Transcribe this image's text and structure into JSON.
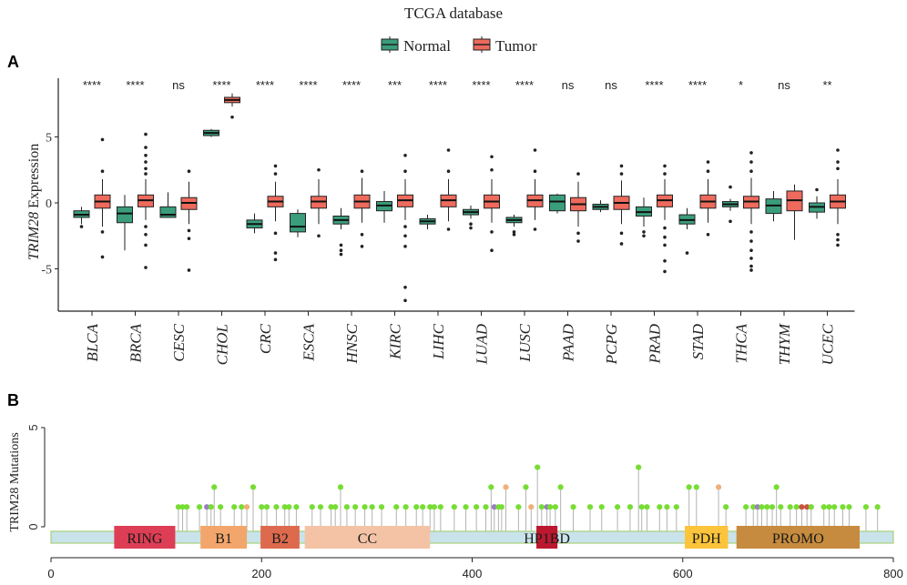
{
  "chart_data": [
    {
      "panel": "A",
      "type": "boxplot",
      "title": "TCGA database",
      "ylabel_gene": "TRIM28",
      "ylabel_suffix": " Expression",
      "ylim": [
        -8,
        9
      ],
      "yticks": [
        {
          "value": 5,
          "label": "5"
        },
        {
          "value": 0,
          "label": "0"
        },
        {
          "value": -5,
          "label": "-5"
        }
      ],
      "legend": [
        {
          "name": "Normal",
          "color": "#3a9d7c"
        },
        {
          "name": "Tumor",
          "color": "#ee6a5c"
        }
      ],
      "categories": [
        "BLCA",
        "BRCA",
        "CESC",
        "CHOL",
        "CRC",
        "ESCA",
        "HNSC",
        "KIRC",
        "LIHC",
        "LUAD",
        "LUSC",
        "PAAD",
        "PCPG",
        "PRAD",
        "STAD",
        "THCA",
        "THYM",
        "UCEC"
      ],
      "significance": [
        "****",
        "****",
        "ns",
        "****",
        "****",
        "****",
        "****",
        "***",
        "****",
        "****",
        "****",
        "ns",
        "ns",
        "****",
        "****",
        "*",
        "ns",
        "**"
      ],
      "series": [
        {
          "name": "Normal",
          "boxes": [
            {
              "q1": -1.1,
              "median": -0.9,
              "q3": -0.6,
              "lo": -1.6,
              "hi": -0.3,
              "out": [
                -1.8
              ]
            },
            {
              "q1": -1.5,
              "median": -0.8,
              "q3": -0.3,
              "lo": -3.6,
              "hi": 0.6,
              "out": []
            },
            {
              "q1": -1.1,
              "median": -0.9,
              "q3": -0.3,
              "lo": -1.1,
              "hi": 0.8,
              "out": []
            },
            {
              "q1": 5.1,
              "median": 5.3,
              "q3": 5.5,
              "lo": 5.0,
              "hi": 5.6,
              "out": []
            },
            {
              "q1": -1.9,
              "median": -1.6,
              "q3": -1.3,
              "lo": -2.3,
              "hi": -0.8,
              "out": []
            },
            {
              "q1": -2.2,
              "median": -1.8,
              "q3": -0.8,
              "lo": -2.6,
              "hi": -0.5,
              "out": []
            },
            {
              "q1": -1.6,
              "median": -1.3,
              "q3": -1.0,
              "lo": -2.0,
              "hi": -0.4,
              "out": [
                -3.2,
                -3.6,
                -3.9
              ]
            },
            {
              "q1": -0.6,
              "median": -0.2,
              "q3": 0.1,
              "lo": -1.5,
              "hi": 0.9,
              "out": []
            },
            {
              "q1": -1.6,
              "median": -1.4,
              "q3": -1.2,
              "lo": -2.0,
              "hi": -0.9,
              "out": []
            },
            {
              "q1": -0.9,
              "median": -0.7,
              "q3": -0.5,
              "lo": -1.2,
              "hi": -0.2,
              "out": [
                -1.6,
                -1.9
              ]
            },
            {
              "q1": -1.5,
              "median": -1.3,
              "q3": -1.1,
              "lo": -1.8,
              "hi": -0.9,
              "out": [
                -2.2,
                -2.4
              ]
            },
            {
              "q1": -0.6,
              "median": 0.1,
              "q3": 0.6,
              "lo": -0.8,
              "hi": 0.7,
              "out": []
            },
            {
              "q1": -0.5,
              "median": -0.3,
              "q3": -0.1,
              "lo": -0.7,
              "hi": 0.2,
              "out": []
            },
            {
              "q1": -1.0,
              "median": -0.7,
              "q3": -0.3,
              "lo": -1.8,
              "hi": 0.4,
              "out": [
                -2.2,
                -2.5
              ]
            },
            {
              "q1": -1.6,
              "median": -1.3,
              "q3": -0.9,
              "lo": -2.0,
              "hi": -0.4,
              "out": [
                -3.8
              ]
            },
            {
              "q1": -0.3,
              "median": -0.1,
              "q3": 0.1,
              "lo": -0.6,
              "hi": 0.3,
              "out": [
                1.2,
                -1.4
              ]
            },
            {
              "q1": -0.8,
              "median": -0.2,
              "q3": 0.3,
              "lo": -1.4,
              "hi": 0.9,
              "out": []
            },
            {
              "q1": -0.7,
              "median": -0.3,
              "q3": 0.0,
              "lo": -1.2,
              "hi": 0.5,
              "out": [
                1.0
              ]
            }
          ]
        },
        {
          "name": "Tumor",
          "boxes": [
            {
              "q1": -0.4,
              "median": 0.1,
              "q3": 0.6,
              "lo": -1.8,
              "hi": 1.8,
              "out": [
                2.4,
                -2.2,
                -4.1,
                4.8
              ]
            },
            {
              "q1": -0.3,
              "median": 0.2,
              "q3": 0.6,
              "lo": -1.3,
              "hi": 1.8,
              "out": [
                2.2,
                2.6,
                3.1,
                3.6,
                4.2,
                5.2,
                -1.8,
                -2.4,
                -3.2,
                -4.9
              ]
            },
            {
              "q1": -0.5,
              "median": 0.0,
              "q3": 0.4,
              "lo": -1.6,
              "hi": 1.6,
              "out": [
                2.4,
                -2.1,
                -2.7,
                -5.1
              ]
            },
            {
              "q1": 7.6,
              "median": 7.8,
              "q3": 8.0,
              "lo": 7.3,
              "hi": 8.3,
              "out": [
                6.5
              ]
            },
            {
              "q1": -0.3,
              "median": 0.1,
              "q3": 0.5,
              "lo": -1.4,
              "hi": 1.6,
              "out": [
                2.2,
                2.8,
                -2.3,
                -3.8,
                -4.3
              ]
            },
            {
              "q1": -0.4,
              "median": 0.1,
              "q3": 0.5,
              "lo": -1.6,
              "hi": 1.8,
              "out": [
                2.5,
                -2.5
              ]
            },
            {
              "q1": -0.4,
              "median": 0.1,
              "q3": 0.6,
              "lo": -1.5,
              "hi": 1.9,
              "out": [
                2.4,
                -2.4,
                -3.3
              ]
            },
            {
              "q1": -0.3,
              "median": 0.2,
              "q3": 0.6,
              "lo": -1.3,
              "hi": 1.8,
              "out": [
                2.4,
                3.6,
                -1.8,
                -2.5,
                -3.3,
                -6.4,
                -7.4
              ]
            },
            {
              "q1": -0.3,
              "median": 0.2,
              "q3": 0.6,
              "lo": -1.4,
              "hi": 1.8,
              "out": [
                2.4,
                4.0,
                -2.0
              ]
            },
            {
              "q1": -0.4,
              "median": 0.1,
              "q3": 0.6,
              "lo": -1.5,
              "hi": 1.8,
              "out": [
                2.5,
                3.5,
                -2.2,
                -3.6
              ]
            },
            {
              "q1": -0.3,
              "median": 0.2,
              "q3": 0.6,
              "lo": -1.3,
              "hi": 1.8,
              "out": [
                2.4,
                4.0,
                -2.0
              ]
            },
            {
              "q1": -0.6,
              "median": -0.1,
              "q3": 0.4,
              "lo": -1.8,
              "hi": 1.6,
              "out": [
                2.2,
                -2.3,
                -2.9
              ]
            },
            {
              "q1": -0.5,
              "median": 0.0,
              "q3": 0.5,
              "lo": -1.6,
              "hi": 1.7,
              "out": [
                2.2,
                2.8,
                -2.3,
                -3.1
              ]
            },
            {
              "q1": -0.3,
              "median": 0.2,
              "q3": 0.6,
              "lo": -1.3,
              "hi": 1.8,
              "out": [
                2.2,
                2.8,
                -1.9,
                -2.6,
                -3.2,
                -4.4,
                -5.2
              ]
            },
            {
              "q1": -0.4,
              "median": 0.1,
              "q3": 0.6,
              "lo": -1.5,
              "hi": 1.8,
              "out": [
                2.4,
                3.1,
                -2.4
              ]
            },
            {
              "q1": -0.4,
              "median": 0.1,
              "q3": 0.5,
              "lo": -1.6,
              "hi": 1.9,
              "out": [
                2.4,
                3.1,
                3.8,
                -2.2,
                -2.9,
                -3.6,
                -4.2,
                -4.8,
                -5.1
              ]
            },
            {
              "q1": -0.6,
              "median": 0.2,
              "q3": 0.9,
              "lo": -2.8,
              "hi": 1.4,
              "out": []
            },
            {
              "q1": -0.4,
              "median": 0.1,
              "q3": 0.6,
              "lo": -1.6,
              "hi": 1.8,
              "out": [
                2.6,
                3.1,
                4.0,
                -2.4,
                -2.8,
                -3.2
              ]
            }
          ]
        }
      ]
    },
    {
      "panel": "B",
      "type": "lollipop",
      "ylabel": "TRIM28 Mutations",
      "ylim": [
        0,
        5
      ],
      "yticks": [
        0,
        5
      ],
      "xlim": [
        0,
        800
      ],
      "xticks": [
        0,
        200,
        400,
        600,
        800
      ],
      "domains": [
        {
          "name": "RING",
          "start": 60,
          "end": 118,
          "color": "#dd3e55"
        },
        {
          "name": "B1",
          "start": 142,
          "end": 186,
          "color": "#f2a66b"
        },
        {
          "name": "B2",
          "start": 199,
          "end": 236,
          "color": "#dd6a4d"
        },
        {
          "name": "CC",
          "start": 241,
          "end": 360,
          "color": "#f4c3a6"
        },
        {
          "name": "HP1BD",
          "start": 461,
          "end": 481,
          "color": "#bb1830"
        },
        {
          "name": "PDH",
          "start": 602,
          "end": 643,
          "color": "#fbc43a"
        },
        {
          "name": "PROMO",
          "start": 651,
          "end": 768,
          "color": "#c68b3e"
        }
      ],
      "mutations": [
        {
          "pos": 121,
          "count": 1
        },
        {
          "pos": 125,
          "count": 1
        },
        {
          "pos": 129,
          "count": 1
        },
        {
          "pos": 141,
          "count": 1
        },
        {
          "pos": 148,
          "count": 1,
          "color": "#9b7fc0"
        },
        {
          "pos": 152,
          "count": 1
        },
        {
          "pos": 155,
          "count": 2
        },
        {
          "pos": 161,
          "count": 1
        },
        {
          "pos": 174,
          "count": 1
        },
        {
          "pos": 181,
          "count": 1
        },
        {
          "pos": 186,
          "count": 1,
          "color": "#f0b07a"
        },
        {
          "pos": 192,
          "count": 2
        },
        {
          "pos": 200,
          "count": 1
        },
        {
          "pos": 205,
          "count": 1
        },
        {
          "pos": 214,
          "count": 1
        },
        {
          "pos": 222,
          "count": 1
        },
        {
          "pos": 226,
          "count": 1
        },
        {
          "pos": 233,
          "count": 1
        },
        {
          "pos": 248,
          "count": 1
        },
        {
          "pos": 256,
          "count": 1
        },
        {
          "pos": 266,
          "count": 1
        },
        {
          "pos": 270,
          "count": 1
        },
        {
          "pos": 275,
          "count": 2
        },
        {
          "pos": 281,
          "count": 1
        },
        {
          "pos": 289,
          "count": 1
        },
        {
          "pos": 298,
          "count": 1
        },
        {
          "pos": 305,
          "count": 1
        },
        {
          "pos": 314,
          "count": 1
        },
        {
          "pos": 328,
          "count": 1
        },
        {
          "pos": 337,
          "count": 1
        },
        {
          "pos": 347,
          "count": 1
        },
        {
          "pos": 353,
          "count": 1
        },
        {
          "pos": 360,
          "count": 1
        },
        {
          "pos": 364,
          "count": 1
        },
        {
          "pos": 370,
          "count": 1
        },
        {
          "pos": 383,
          "count": 1
        },
        {
          "pos": 394,
          "count": 1
        },
        {
          "pos": 404,
          "count": 1
        },
        {
          "pos": 413,
          "count": 1
        },
        {
          "pos": 418,
          "count": 2
        },
        {
          "pos": 421,
          "count": 1,
          "color": "#9b7fc0"
        },
        {
          "pos": 425,
          "count": 1
        },
        {
          "pos": 428,
          "count": 1
        },
        {
          "pos": 432,
          "count": 2,
          "color": "#f0b07a"
        },
        {
          "pos": 444,
          "count": 1
        },
        {
          "pos": 451,
          "count": 2
        },
        {
          "pos": 456,
          "count": 1,
          "color": "#f0b07a"
        },
        {
          "pos": 462,
          "count": 3
        },
        {
          "pos": 466,
          "count": 1
        },
        {
          "pos": 471,
          "count": 1,
          "color": "#9b7fc0"
        },
        {
          "pos": 474,
          "count": 1
        },
        {
          "pos": 479,
          "count": 1
        },
        {
          "pos": 484,
          "count": 2
        },
        {
          "pos": 496,
          "count": 1
        },
        {
          "pos": 512,
          "count": 1
        },
        {
          "pos": 523,
          "count": 1
        },
        {
          "pos": 538,
          "count": 1
        },
        {
          "pos": 550,
          "count": 1
        },
        {
          "pos": 558,
          "count": 3
        },
        {
          "pos": 561,
          "count": 1
        },
        {
          "pos": 566,
          "count": 1
        },
        {
          "pos": 578,
          "count": 1
        },
        {
          "pos": 585,
          "count": 1
        },
        {
          "pos": 594,
          "count": 1
        },
        {
          "pos": 606,
          "count": 2
        },
        {
          "pos": 613,
          "count": 2
        },
        {
          "pos": 634,
          "count": 2,
          "color": "#f0b07a"
        },
        {
          "pos": 641,
          "count": 1
        },
        {
          "pos": 660,
          "count": 1
        },
        {
          "pos": 667,
          "count": 1
        },
        {
          "pos": 671,
          "count": 1,
          "color": "#9b7fc0"
        },
        {
          "pos": 675,
          "count": 1
        },
        {
          "pos": 680,
          "count": 1
        },
        {
          "pos": 685,
          "count": 1
        },
        {
          "pos": 689,
          "count": 2
        },
        {
          "pos": 693,
          "count": 1
        },
        {
          "pos": 702,
          "count": 1
        },
        {
          "pos": 708,
          "count": 1
        },
        {
          "pos": 713,
          "count": 1,
          "color": "#c8553d"
        },
        {
          "pos": 718,
          "count": 1,
          "color": "#c8553d"
        },
        {
          "pos": 722,
          "count": 1
        },
        {
          "pos": 734,
          "count": 1
        },
        {
          "pos": 739,
          "count": 1
        },
        {
          "pos": 744,
          "count": 1
        },
        {
          "pos": 752,
          "count": 1
        },
        {
          "pos": 758,
          "count": 1
        },
        {
          "pos": 774,
          "count": 1
        },
        {
          "pos": 785,
          "count": 1
        }
      ]
    }
  ]
}
